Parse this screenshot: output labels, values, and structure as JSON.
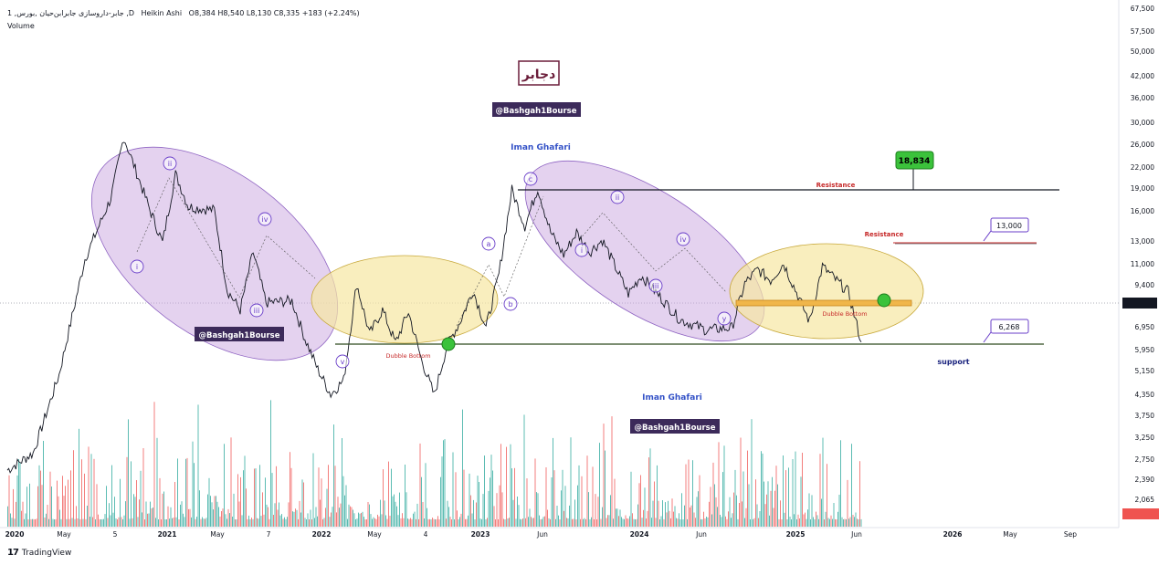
{
  "header": {
    "symbol": "1 ,جابر-داروسازی جابرابن‌حیان ,بورس ,D",
    "chart_type": "Heikin Ashi",
    "ohlc": "O8,384  H8,540  L8,130  C8,335  +183 (+2.24%)",
    "volume_label": "Volume"
  },
  "branding": {
    "logo_text": "TradingView"
  },
  "colors": {
    "up": "#26a69a",
    "down": "#ef5350",
    "price_line": "#131722",
    "purple_zone": "#c9a6e0",
    "yellow_zone": "#f6e7a3",
    "resistance": "#c62828",
    "support_text": "#1a237e",
    "wave_label": "#6a3fc9"
  },
  "chart_data": {
    "type": "line",
    "title": "",
    "yscale": "log",
    "ylim": [
      3700,
      70000
    ],
    "y_ticks": [
      "67,500",
      "57,500",
      "50,000",
      "42,000",
      "36,000",
      "30,000",
      "26,000",
      "22,000",
      "19,000",
      "16,000",
      "13,000",
      "11,000",
      "9,400",
      "8,335",
      "6,950",
      "5,950",
      "5,150",
      "4,350",
      "3,750",
      "3,250",
      "2,750",
      "2,390",
      "2,065",
      "1,887 M"
    ],
    "x_ticks": [
      "2020",
      "May",
      "5",
      "2021",
      "May",
      "7",
      "2022",
      "May",
      "4",
      "2023",
      "Jun",
      "2024",
      "Jun",
      "2025",
      "Jun",
      "2026",
      "May",
      "Sep"
    ],
    "price_series": [
      {
        "t": "2020-01",
        "v": 4200
      },
      {
        "t": "2020-03",
        "v": 4600
      },
      {
        "t": "2020-05",
        "v": 7000
      },
      {
        "t": "2020-07",
        "v": 13000
      },
      {
        "t": "2020-09",
        "v": 18000
      },
      {
        "t": "2020-10",
        "v": 25000
      },
      {
        "t": "2020-12",
        "v": 17000
      },
      {
        "t": "2021-01",
        "v": 14200
      },
      {
        "t": "2021-02",
        "v": 20500
      },
      {
        "t": "2021-03",
        "v": 17200
      },
      {
        "t": "2021-05",
        "v": 16900
      },
      {
        "t": "2021-06",
        "v": 11000
      },
      {
        "t": "2021-07",
        "v": 9900
      },
      {
        "t": "2021-08",
        "v": 13500
      },
      {
        "t": "2021-09",
        "v": 10300
      },
      {
        "t": "2021-11",
        "v": 10400
      },
      {
        "t": "2021-12",
        "v": 8500
      },
      {
        "t": "2022-01",
        "v": 7200
      },
      {
        "t": "2022-02",
        "v": 6300
      },
      {
        "t": "2022-03",
        "v": 6800
      },
      {
        "t": "2022-04",
        "v": 11400
      },
      {
        "t": "2022-05",
        "v": 8700
      },
      {
        "t": "2022-06",
        "v": 9900
      },
      {
        "t": "2022-07",
        "v": 8300
      },
      {
        "t": "2022-08",
        "v": 9800
      },
      {
        "t": "2022-09",
        "v": 7600
      },
      {
        "t": "2022-10",
        "v": 6268
      },
      {
        "t": "2022-11",
        "v": 8200
      },
      {
        "t": "2022-12",
        "v": 9300
      },
      {
        "t": "2023-01",
        "v": 11000
      },
      {
        "t": "2023-02",
        "v": 9000
      },
      {
        "t": "2023-03",
        "v": 12000
      },
      {
        "t": "2023-04",
        "v": 18834
      },
      {
        "t": "2023-05",
        "v": 15500
      },
      {
        "t": "2023-06",
        "v": 19000
      },
      {
        "t": "2023-07",
        "v": 15000
      },
      {
        "t": "2023-08",
        "v": 13300
      },
      {
        "t": "2023-09",
        "v": 15000
      },
      {
        "t": "2023-10",
        "v": 13500
      },
      {
        "t": "2023-11",
        "v": 14400
      },
      {
        "t": "2024-01",
        "v": 10800
      },
      {
        "t": "2024-02",
        "v": 11900
      },
      {
        "t": "2024-03",
        "v": 11000
      },
      {
        "t": "2024-05",
        "v": 9400
      },
      {
        "t": "2024-07",
        "v": 8900
      },
      {
        "t": "2024-09",
        "v": 9000
      },
      {
        "t": "2024-10",
        "v": 11400
      },
      {
        "t": "2024-11",
        "v": 12300
      },
      {
        "t": "2024-12",
        "v": 11600
      },
      {
        "t": "2025-01",
        "v": 12700
      },
      {
        "t": "2025-03",
        "v": 9300
      },
      {
        "t": "2025-04",
        "v": 12500
      },
      {
        "t": "2025-06",
        "v": 10900
      },
      {
        "t": "2025-07",
        "v": 8335
      }
    ],
    "levels": [
      {
        "name": "resistance-1",
        "value": 18834,
        "label": "Resistance",
        "tag": "18,834"
      },
      {
        "name": "resistance-2",
        "value": 13000,
        "label": "Resistance",
        "tag": "13,000"
      },
      {
        "name": "support",
        "value": 6268,
        "label": "support",
        "tag": "6,268"
      },
      {
        "name": "last",
        "value": 8335,
        "tag": "8,335"
      }
    ],
    "wave_labels": [
      "i",
      "ii",
      "iii",
      "iv",
      "v",
      "a",
      "b",
      "c",
      "i",
      "ii",
      "iii",
      "iv",
      "y"
    ],
    "annotations": {
      "pattern_label": "Dubble Bottom",
      "author": "Iman Ghafari",
      "handle": "@Bashgah1Bourse",
      "symbol_badge": "دجابر"
    },
    "volume_note": "1,887 M"
  }
}
